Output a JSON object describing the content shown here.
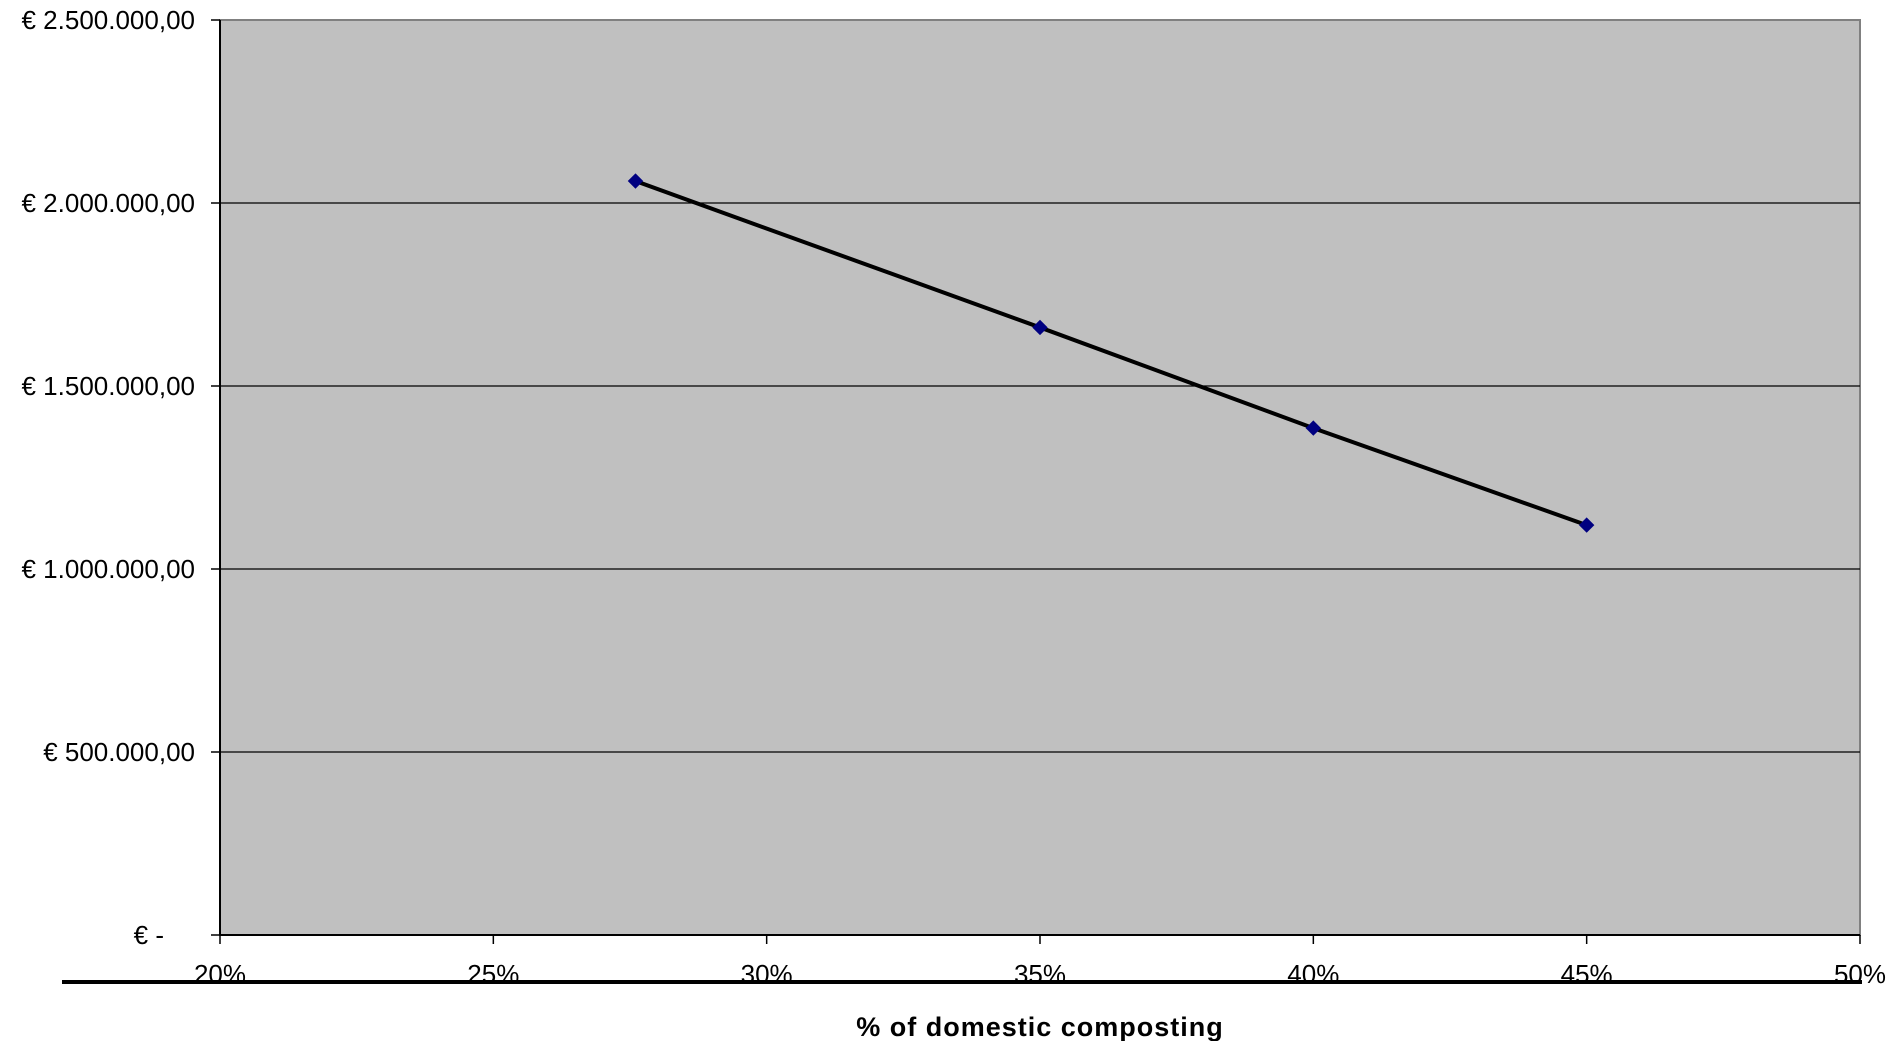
{
  "chart_data": {
    "type": "line",
    "title": "",
    "xlabel": "% of domestic composting",
    "ylabel": "",
    "x_ticks": [
      "20%",
      "25%",
      "30%",
      "35%",
      "40%",
      "45%",
      "50%"
    ],
    "y_ticks": [
      "€ -",
      "€ 500.000,00",
      "€ 1.000.000,00",
      "€ 1.500.000,00",
      "€ 2.000.000,00",
      "€ 2.500.000,00"
    ],
    "xlim": [
      20,
      50
    ],
    "ylim": [
      0,
      2500000
    ],
    "grid": "horizontal",
    "legend": "none",
    "series": [
      {
        "x": [
          27.6,
          35,
          40,
          45
        ],
        "values": [
          2060000,
          1660000,
          1385000,
          1120000
        ]
      }
    ],
    "colors": {
      "plot_background": "#c0c0c0",
      "line": "#000000",
      "marker": "#000080",
      "gridline": "#000000"
    }
  }
}
